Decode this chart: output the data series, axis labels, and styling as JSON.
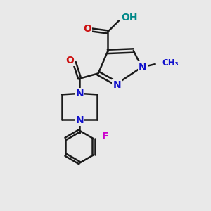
{
  "background_color": "#e9e9e9",
  "bond_color": "#1a1a1a",
  "bond_width": 1.8,
  "atom_colors": {
    "N": "#1010cc",
    "O": "#cc1010",
    "F": "#cc00cc",
    "H": "#008888",
    "C": "#1a1a1a"
  },
  "font_size_atom": 10,
  "figsize": [
    3.0,
    3.0
  ],
  "dpi": 100
}
